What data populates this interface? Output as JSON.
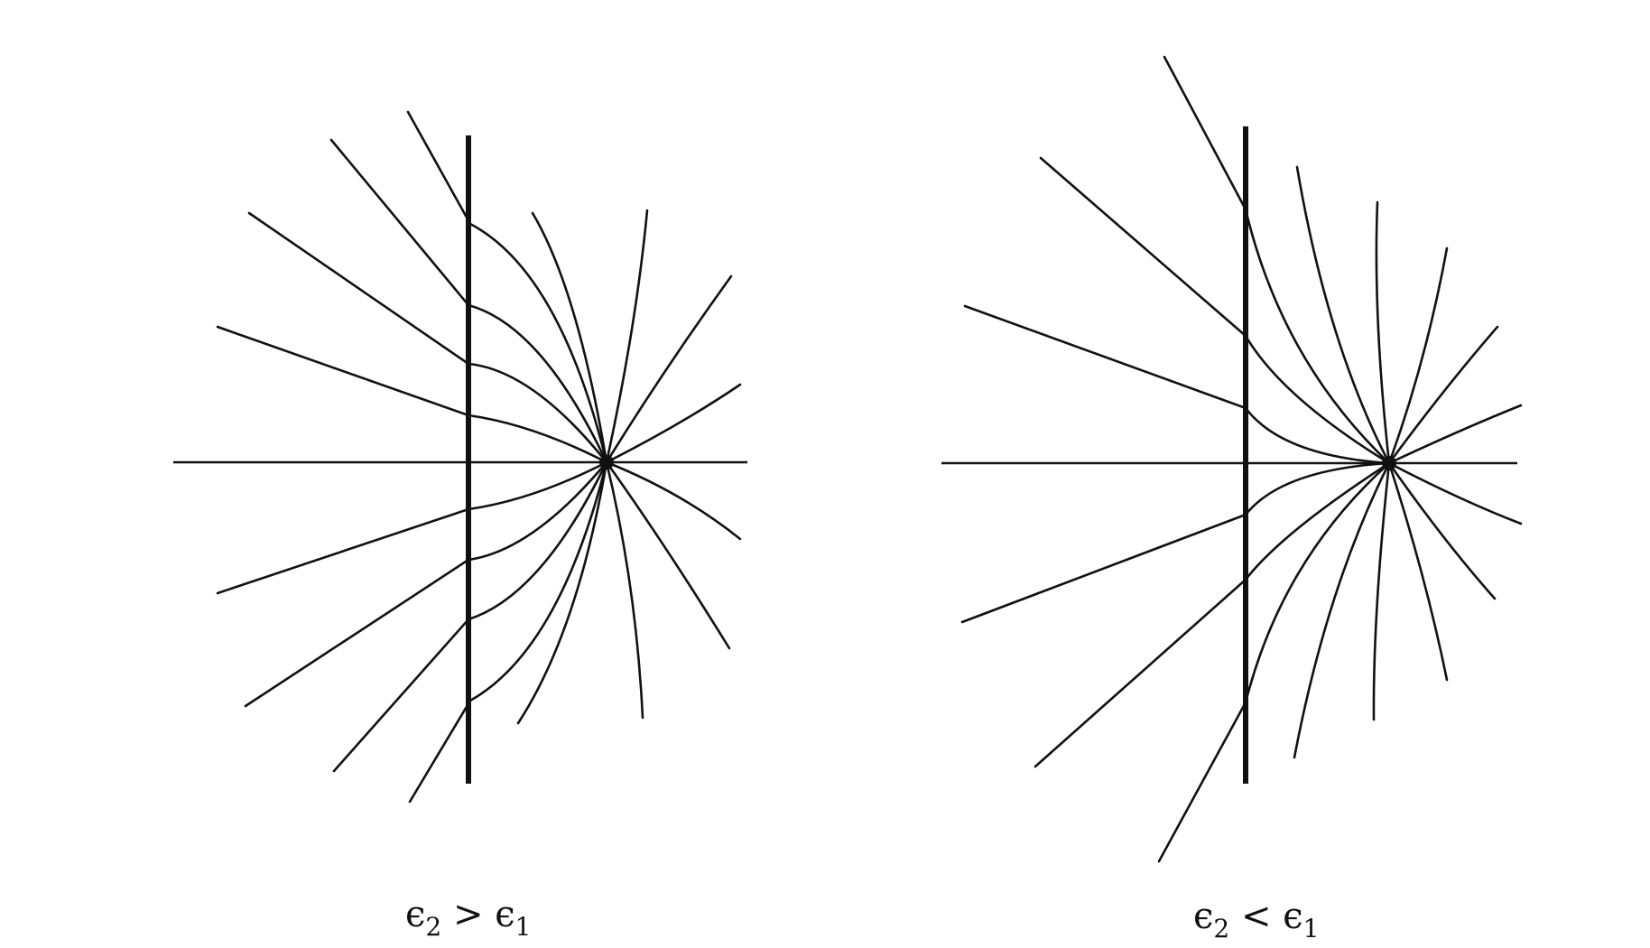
{
  "panels": [
    {
      "id": "left",
      "caption": {
        "eps_a": "ϵ",
        "sub_a": "2",
        "relation": " > ",
        "eps_b": "ϵ",
        "sub_b": "1"
      }
    },
    {
      "id": "right",
      "caption": {
        "eps_a": "ϵ",
        "sub_a": "2",
        "relation": " < ",
        "eps_b": "ϵ",
        "sub_b": "1"
      }
    }
  ],
  "colors": {
    "ink": "#111111",
    "background": "#ffffff"
  }
}
